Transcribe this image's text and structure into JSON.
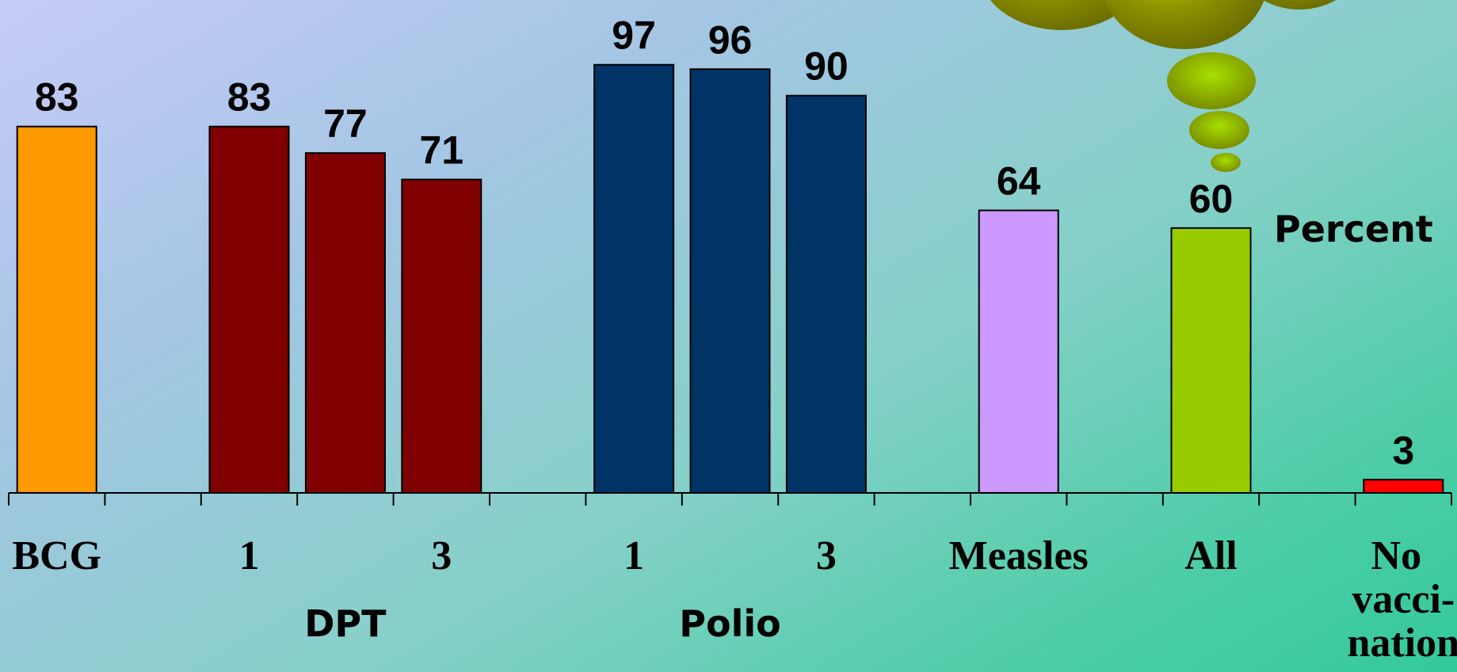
{
  "colors": {
    "bcg": "#ff9900",
    "dpt": "#800000",
    "polio": "#003366",
    "measles": "#cc99ff",
    "all": "#99cc00",
    "none": "#ff0000",
    "cloud": "#8a8e00"
  },
  "chart_data": {
    "type": "bar",
    "title": "",
    "xlabel": "",
    "ylabel": "Percent",
    "ylim": [
      0,
      100
    ],
    "grid": false,
    "legend": "none",
    "bars": [
      {
        "slot": 0,
        "label": "BCG",
        "value": 83,
        "color_key": "bcg"
      },
      {
        "slot": 2,
        "label": "1",
        "value": 83,
        "color_key": "dpt"
      },
      {
        "slot": 3,
        "label": "",
        "value": 77,
        "color_key": "dpt"
      },
      {
        "slot": 4,
        "label": "3",
        "value": 71,
        "color_key": "dpt"
      },
      {
        "slot": 6,
        "label": "1",
        "value": 97,
        "color_key": "polio"
      },
      {
        "slot": 7,
        "label": "",
        "value": 96,
        "color_key": "polio"
      },
      {
        "slot": 8,
        "label": "3",
        "value": 90,
        "color_key": "polio"
      },
      {
        "slot": 10,
        "label": "Measles",
        "value": 64,
        "color_key": "measles"
      },
      {
        "slot": 12,
        "label": "All",
        "value": 60,
        "color_key": "all"
      },
      {
        "slot": 14,
        "label": [
          "No",
          "vacci-",
          "nation"
        ],
        "value": 3,
        "color_key": "none"
      }
    ],
    "groups": [
      {
        "label": "DPT",
        "from_slot": 2,
        "to_slot": 4
      },
      {
        "label": "Polio",
        "from_slot": 6,
        "to_slot": 8
      }
    ]
  }
}
